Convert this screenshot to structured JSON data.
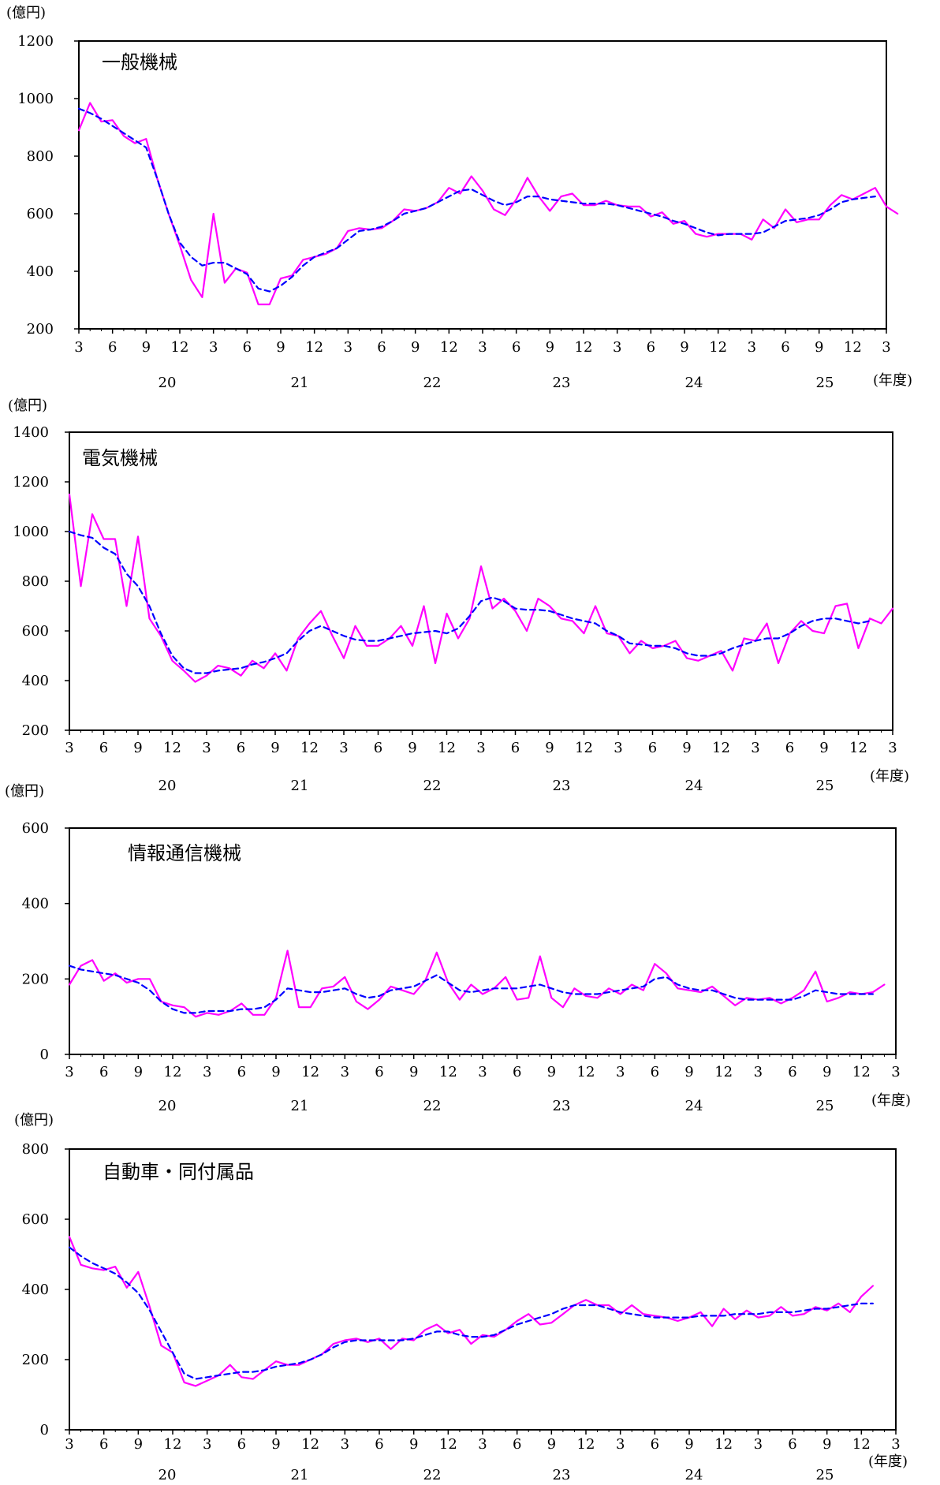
{
  "unit_label": "(億円)",
  "fy_label": "(年度)",
  "colors": {
    "actual": "#ff00ff",
    "trend": "#0000ff",
    "axis": "#000000"
  },
  "x_tick_labels": [
    "3",
    "6",
    "9",
    "12",
    "3",
    "6",
    "9",
    "12",
    "3",
    "6",
    "9",
    "12",
    "3",
    "6",
    "9",
    "12",
    "3",
    "6",
    "9",
    "12",
    "3",
    "6",
    "9",
    "12",
    "3"
  ],
  "year_labels": [
    "20",
    "21",
    "22",
    "23",
    "24",
    "25"
  ],
  "chart_data": [
    {
      "type": "line",
      "title": "一般機械",
      "ylim": [
        200,
        1200
      ],
      "yticks": [
        200,
        400,
        600,
        800,
        1000,
        1200
      ],
      "x_range": [
        0,
        72
      ],
      "series": [
        {
          "values": [
            890,
            985,
            920,
            925,
            870,
            845,
            860,
            720,
            600,
            490,
            370,
            310,
            600,
            360,
            410,
            395,
            285,
            285,
            375,
            385,
            440,
            450,
            460,
            480,
            540,
            550,
            545,
            550,
            575,
            615,
            610,
            620,
            640,
            690,
            670,
            730,
            680,
            615,
            595,
            650,
            725,
            660,
            610,
            660,
            670,
            630,
            630,
            645,
            630,
            625,
            625,
            590,
            605,
            565,
            575,
            530,
            520,
            530,
            530,
            530,
            510,
            580,
            550,
            615,
            570,
            580,
            580,
            630,
            665,
            650,
            670,
            690,
            625,
            600
          ]
        },
        {
          "x_start": 0,
          "values": [
            965,
            950,
            930,
            905,
            880,
            855,
            830,
            720,
            600,
            500,
            450,
            420,
            430,
            430,
            410,
            390,
            340,
            330,
            350,
            380,
            420,
            450,
            465,
            480,
            510,
            540,
            545,
            555,
            575,
            600,
            610,
            620,
            640,
            660,
            680,
            685,
            665,
            645,
            630,
            640,
            660,
            660,
            650,
            645,
            640,
            635,
            635,
            635,
            630,
            620,
            610,
            600,
            590,
            575,
            565,
            550,
            535,
            525,
            530,
            530,
            530,
            535,
            555,
            575,
            580,
            585,
            595,
            615,
            640,
            650,
            655,
            660
          ]
        }
      ]
    },
    {
      "type": "line",
      "title": "電気機械",
      "ylim": [
        200,
        1400
      ],
      "yticks": [
        200,
        400,
        600,
        800,
        1000,
        1200,
        1400
      ],
      "x_range": [
        0,
        72
      ],
      "series": [
        {
          "values": [
            1150,
            780,
            1070,
            970,
            970,
            700,
            980,
            650,
            580,
            480,
            440,
            395,
            420,
            460,
            450,
            420,
            480,
            450,
            510,
            440,
            570,
            630,
            680,
            580,
            490,
            620,
            540,
            540,
            570,
            620,
            540,
            700,
            470,
            670,
            570,
            650,
            860,
            690,
            730,
            680,
            600,
            730,
            700,
            650,
            640,
            590,
            700,
            590,
            580,
            510,
            560,
            530,
            540,
            560,
            490,
            480,
            500,
            520,
            440,
            570,
            560,
            630,
            470,
            590,
            640,
            600,
            590,
            700,
            710,
            530,
            650,
            630,
            690
          ]
        },
        {
          "x_start": 0,
          "values": [
            1000,
            985,
            975,
            935,
            910,
            830,
            780,
            700,
            590,
            500,
            450,
            430,
            430,
            440,
            445,
            450,
            465,
            475,
            490,
            510,
            560,
            600,
            620,
            600,
            580,
            565,
            560,
            560,
            570,
            580,
            590,
            595,
            600,
            590,
            610,
            660,
            720,
            735,
            720,
            690,
            685,
            685,
            680,
            665,
            650,
            640,
            630,
            600,
            580,
            550,
            545,
            540,
            540,
            530,
            510,
            500,
            500,
            510,
            530,
            545,
            560,
            570,
            570,
            590,
            620,
            640,
            650,
            650,
            640,
            630,
            640
          ]
        }
      ]
    },
    {
      "type": "line",
      "title": "情報通信機械",
      "ylim": [
        0,
        600
      ],
      "yticks": [
        0,
        200,
        400,
        600
      ],
      "x_range": [
        0,
        72
      ],
      "series": [
        {
          "values": [
            185,
            235,
            250,
            195,
            215,
            190,
            200,
            200,
            140,
            130,
            125,
            100,
            110,
            105,
            115,
            135,
            105,
            105,
            150,
            275,
            125,
            125,
            175,
            180,
            205,
            140,
            120,
            145,
            180,
            170,
            160,
            195,
            270,
            190,
            145,
            185,
            160,
            175,
            205,
            145,
            150,
            260,
            150,
            125,
            175,
            155,
            150,
            175,
            160,
            185,
            170,
            240,
            215,
            175,
            170,
            165,
            180,
            155,
            130,
            150,
            145,
            150,
            135,
            150,
            170,
            220,
            140,
            150,
            165,
            160,
            165,
            185
          ]
        },
        {
          "x_start": 0,
          "values": [
            235,
            225,
            220,
            215,
            210,
            200,
            190,
            170,
            140,
            120,
            110,
            110,
            115,
            115,
            115,
            120,
            120,
            125,
            145,
            175,
            170,
            165,
            165,
            170,
            175,
            160,
            150,
            155,
            170,
            175,
            180,
            195,
            210,
            190,
            170,
            165,
            170,
            175,
            175,
            175,
            180,
            185,
            175,
            165,
            160,
            160,
            160,
            165,
            170,
            175,
            180,
            200,
            205,
            185,
            175,
            170,
            170,
            160,
            150,
            145,
            145,
            145,
            145,
            145,
            155,
            170,
            165,
            160,
            160,
            160,
            160
          ]
        }
      ]
    },
    {
      "type": "line",
      "title": "自動車・同付属品",
      "ylim": [
        0,
        800
      ],
      "yticks": [
        0,
        200,
        400,
        600,
        800
      ],
      "x_range": [
        0,
        72
      ],
      "series": [
        {
          "values": [
            550,
            470,
            460,
            455,
            465,
            405,
            450,
            350,
            240,
            220,
            135,
            125,
            140,
            155,
            185,
            150,
            145,
            170,
            195,
            185,
            185,
            200,
            215,
            245,
            255,
            260,
            250,
            260,
            230,
            260,
            255,
            285,
            300,
            275,
            285,
            245,
            270,
            265,
            285,
            310,
            330,
            300,
            305,
            330,
            355,
            370,
            355,
            355,
            330,
            355,
            330,
            325,
            320,
            310,
            320,
            335,
            295,
            345,
            315,
            340,
            320,
            325,
            350,
            325,
            330,
            350,
            340,
            360,
            335,
            380,
            410
          ]
        },
        {
          "x_start": 0,
          "values": [
            520,
            495,
            475,
            460,
            445,
            420,
            390,
            340,
            280,
            220,
            160,
            145,
            150,
            155,
            160,
            165,
            165,
            170,
            180,
            185,
            190,
            200,
            215,
            235,
            250,
            255,
            255,
            255,
            255,
            255,
            260,
            270,
            280,
            280,
            270,
            265,
            265,
            270,
            285,
            300,
            310,
            320,
            330,
            345,
            355,
            355,
            355,
            345,
            335,
            330,
            325,
            320,
            320,
            320,
            320,
            325,
            325,
            325,
            330,
            330,
            330,
            335,
            335,
            335,
            340,
            345,
            345,
            350,
            355,
            360,
            360
          ]
        }
      ]
    }
  ]
}
